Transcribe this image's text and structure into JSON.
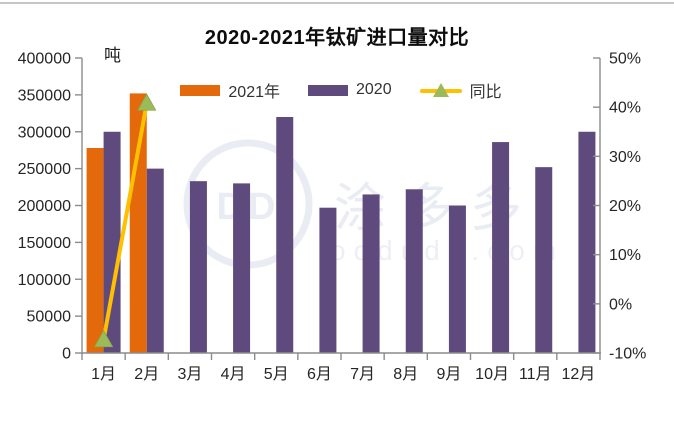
{
  "chart_data": {
    "type": "combo",
    "title": "2020-2021年钛矿进口量对比",
    "categories": [
      "1月",
      "2月",
      "3月",
      "4月",
      "5月",
      "6月",
      "7月",
      "8月",
      "9月",
      "10月",
      "11月",
      "12月"
    ],
    "series": [
      {
        "name": "2021年",
        "chart": "bar",
        "axis": "left",
        "color": "#E4690B",
        "values": [
          278000,
          352000,
          null,
          null,
          null,
          null,
          null,
          null,
          null,
          null,
          null,
          null
        ]
      },
      {
        "name": "2020",
        "chart": "bar",
        "axis": "left",
        "color": "#5F4A7D",
        "values": [
          300000,
          250000,
          233000,
          230000,
          320000,
          197000,
          215000,
          222000,
          200000,
          286000,
          252000,
          300000
        ]
      },
      {
        "name": "同比",
        "chart": "line",
        "axis": "right",
        "color": "#FFC000",
        "marker": "triangle",
        "marker_color": "#9BBB59",
        "values": [
          -7.3,
          40.8,
          null,
          null,
          null,
          null,
          null,
          null,
          null,
          null,
          null,
          null
        ]
      }
    ],
    "left_axis": {
      "unit": "吨",
      "min": 0,
      "max": 400000,
      "step": 50000
    },
    "right_axis": {
      "min": -10,
      "max": 50,
      "step": 10,
      "suffix": "%"
    },
    "grid": false,
    "legend_position": "top",
    "axis_color": "#8c8c8c",
    "tick_label_color": "#262626"
  },
  "watermark": {
    "cn": "涂多多",
    "en": "oodudu.com",
    "logo_text": "DD"
  }
}
